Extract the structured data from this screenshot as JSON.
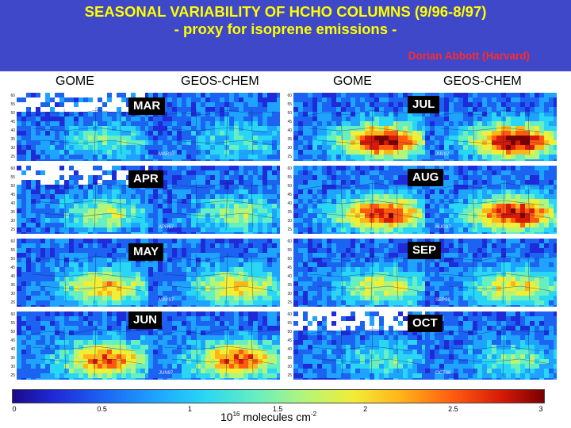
{
  "header": {
    "title_line1": "SEASONAL VARIABILITY OF HCHO COLUMNS (9/96-8/97)",
    "title_line2": "- proxy for isoprene emissions -",
    "author": "Dorian Abbott (Harvard)"
  },
  "columns": {
    "left_gome": "GOME",
    "left_geos": "GEOS-CHEM",
    "right_gome": "GOME",
    "right_geos": "GEOS-CHEM"
  },
  "months": {
    "left": [
      {
        "label": "MAR",
        "model_tag": "MAR97"
      },
      {
        "label": "APR",
        "model_tag": "APR97"
      },
      {
        "label": "MAY",
        "model_tag": "MAY97"
      },
      {
        "label": "JUN",
        "model_tag": "JUN97"
      }
    ],
    "right": [
      {
        "label": "JUL",
        "model_tag": "JUL97"
      },
      {
        "label": "AUG",
        "model_tag": "AUG97"
      },
      {
        "label": "SEP",
        "model_tag": "SEP96"
      },
      {
        "label": "OCT",
        "model_tag": "OCT96"
      }
    ]
  },
  "map_axis": {
    "lat_ticks": [
      "60",
      "55",
      "50",
      "45",
      "40",
      "35",
      "30",
      "25"
    ]
  },
  "colorbar": {
    "ticks": [
      "0",
      "0.5",
      "1",
      "1.5",
      "2",
      "2.5",
      "3"
    ],
    "units_base": "10",
    "units_exp": "16",
    "units_text": "molecules cm",
    "units_power": "-2",
    "colors": [
      "#1a0a8c",
      "#1f2ad8",
      "#1c63f2",
      "#1ea4ff",
      "#29d6f4",
      "#68efc0",
      "#b3f57a",
      "#f1ee36",
      "#ffb418",
      "#ff5a10",
      "#d51a08",
      "#7a0000"
    ]
  },
  "intensity": {
    "left_gome": [
      0.35,
      0.45,
      0.65,
      0.8
    ],
    "left_geos": [
      0.3,
      0.42,
      0.62,
      0.82
    ],
    "right_gome": [
      0.95,
      0.9,
      0.55,
      0.3
    ],
    "right_geos": [
      1.0,
      0.95,
      0.6,
      0.35
    ]
  }
}
